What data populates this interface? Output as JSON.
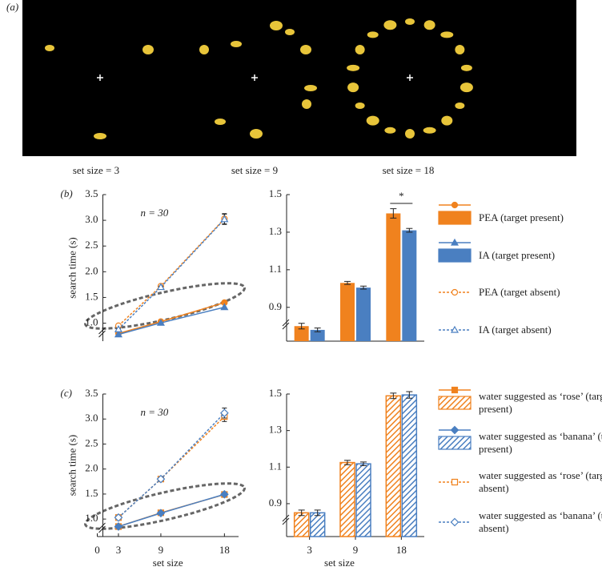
{
  "panel_a": {
    "label": "(a)",
    "set_size_labels": [
      "set size = 3",
      "set size = 9",
      "set size = 18"
    ]
  },
  "chart_data": [
    {
      "type": "line",
      "panel_label": "(b)",
      "annotation": "n = 30",
      "y_label": "search time (s)",
      "x": [
        3,
        9,
        18
      ],
      "xlim": [
        0,
        20
      ],
      "ylim": [
        0.65,
        3.5
      ],
      "yticks": [
        {
          "value": 1,
          "label": "1.0"
        },
        1.5,
        {
          "value": 2,
          "label": "2.0"
        },
        2.5,
        {
          "value": 3,
          "label": "3.0"
        },
        3.5
      ],
      "legend": "right",
      "series": [
        {
          "name": "PEA (target present)",
          "color": "#f0821e",
          "marker": "circle",
          "dashed": false,
          "filled": true,
          "values": [
            0.8,
            1.03,
            1.4
          ]
        },
        {
          "name": "IA (target present)",
          "color": "#4a7fc1",
          "marker": "triangle",
          "dashed": false,
          "filled": true,
          "values": [
            0.78,
            1.005,
            1.31
          ]
        },
        {
          "name": "PEA (target absent)",
          "color": "#f0821e",
          "marker": "circle",
          "dashed": true,
          "filled": false,
          "values": [
            0.95,
            1.72,
            3.03
          ],
          "errors": [
            0.02,
            0.02,
            0.1
          ]
        },
        {
          "name": "IA (target absent)",
          "color": "#4a7fc1",
          "marker": "triangle",
          "dashed": true,
          "filled": false,
          "values": [
            0.88,
            1.7,
            3.02
          ],
          "errors": [
            0.02,
            0.02,
            0.1
          ]
        }
      ]
    },
    {
      "type": "bar",
      "categories": [
        null,
        null,
        null
      ],
      "ylim": [
        0.72,
        1.5
      ],
      "yticks": [
        0.9,
        1.1,
        1.3,
        1.5
      ],
      "hatch": false,
      "annotation": "*",
      "series": [
        {
          "color": "#f0821e",
          "values": [
            0.8,
            1.03,
            1.4
          ],
          "errors": [
            0.015,
            0.008,
            0.025
          ]
        },
        {
          "color": "#4a7fc1",
          "values": [
            0.78,
            1.005,
            1.31
          ],
          "errors": [
            0.01,
            0.008,
            0.01
          ]
        }
      ]
    },
    {
      "type": "line",
      "panel_label": "(c)",
      "annotation": "n = 30",
      "y_label": "search time (s)",
      "x_label": "set size",
      "x": [
        3,
        9,
        18
      ],
      "xlim": [
        0,
        20
      ],
      "xticks": [
        0,
        3,
        9,
        18
      ],
      "ylim": [
        0.65,
        3.5
      ],
      "yticks": [
        {
          "value": 1,
          "label": "1.0"
        },
        1.5,
        {
          "value": 2,
          "label": "2.0"
        },
        2.5,
        {
          "value": 3,
          "label": "3.0"
        },
        3.5
      ],
      "legend": "right",
      "series": [
        {
          "name": "water suggested as ‘rose’ (target present)",
          "color": "#f0821e",
          "marker": "square",
          "dashed": false,
          "filled": true,
          "values": [
            0.85,
            1.125,
            1.49
          ]
        },
        {
          "name": "water suggested as ‘banana’ (target present)",
          "color": "#4a7fc1",
          "marker": "diamond",
          "dashed": false,
          "filled": true,
          "values": [
            0.85,
            1.118,
            1.495
          ]
        },
        {
          "name": "water suggested as ‘rose’ (target absent)",
          "color": "#f0821e",
          "marker": "square",
          "dashed": true,
          "filled": false,
          "values": [
            1.03,
            1.8,
            3.05
          ],
          "errors": [
            0.02,
            0.02,
            0.1
          ]
        },
        {
          "name": "water suggested as ‘banana’ (target absent)",
          "color": "#4a7fc1",
          "marker": "diamond",
          "dashed": true,
          "filled": false,
          "values": [
            1.03,
            1.8,
            3.12
          ],
          "errors": [
            0.02,
            0.02,
            0.1
          ]
        }
      ]
    },
    {
      "type": "bar",
      "categories": [
        "3",
        "9",
        "18"
      ],
      "x_label": "set size",
      "ylim": [
        0.72,
        1.5
      ],
      "yticks": [
        0.9,
        1.1,
        1.3,
        1.5
      ],
      "hatch": true,
      "series": [
        {
          "color": "#f0821e",
          "values": [
            0.85,
            1.125,
            1.49
          ],
          "errors": [
            0.015,
            0.012,
            0.015
          ]
        },
        {
          "color": "#4a7fc1",
          "values": [
            0.85,
            1.118,
            1.495
          ],
          "errors": [
            0.015,
            0.01,
            0.018
          ]
        }
      ]
    }
  ]
}
